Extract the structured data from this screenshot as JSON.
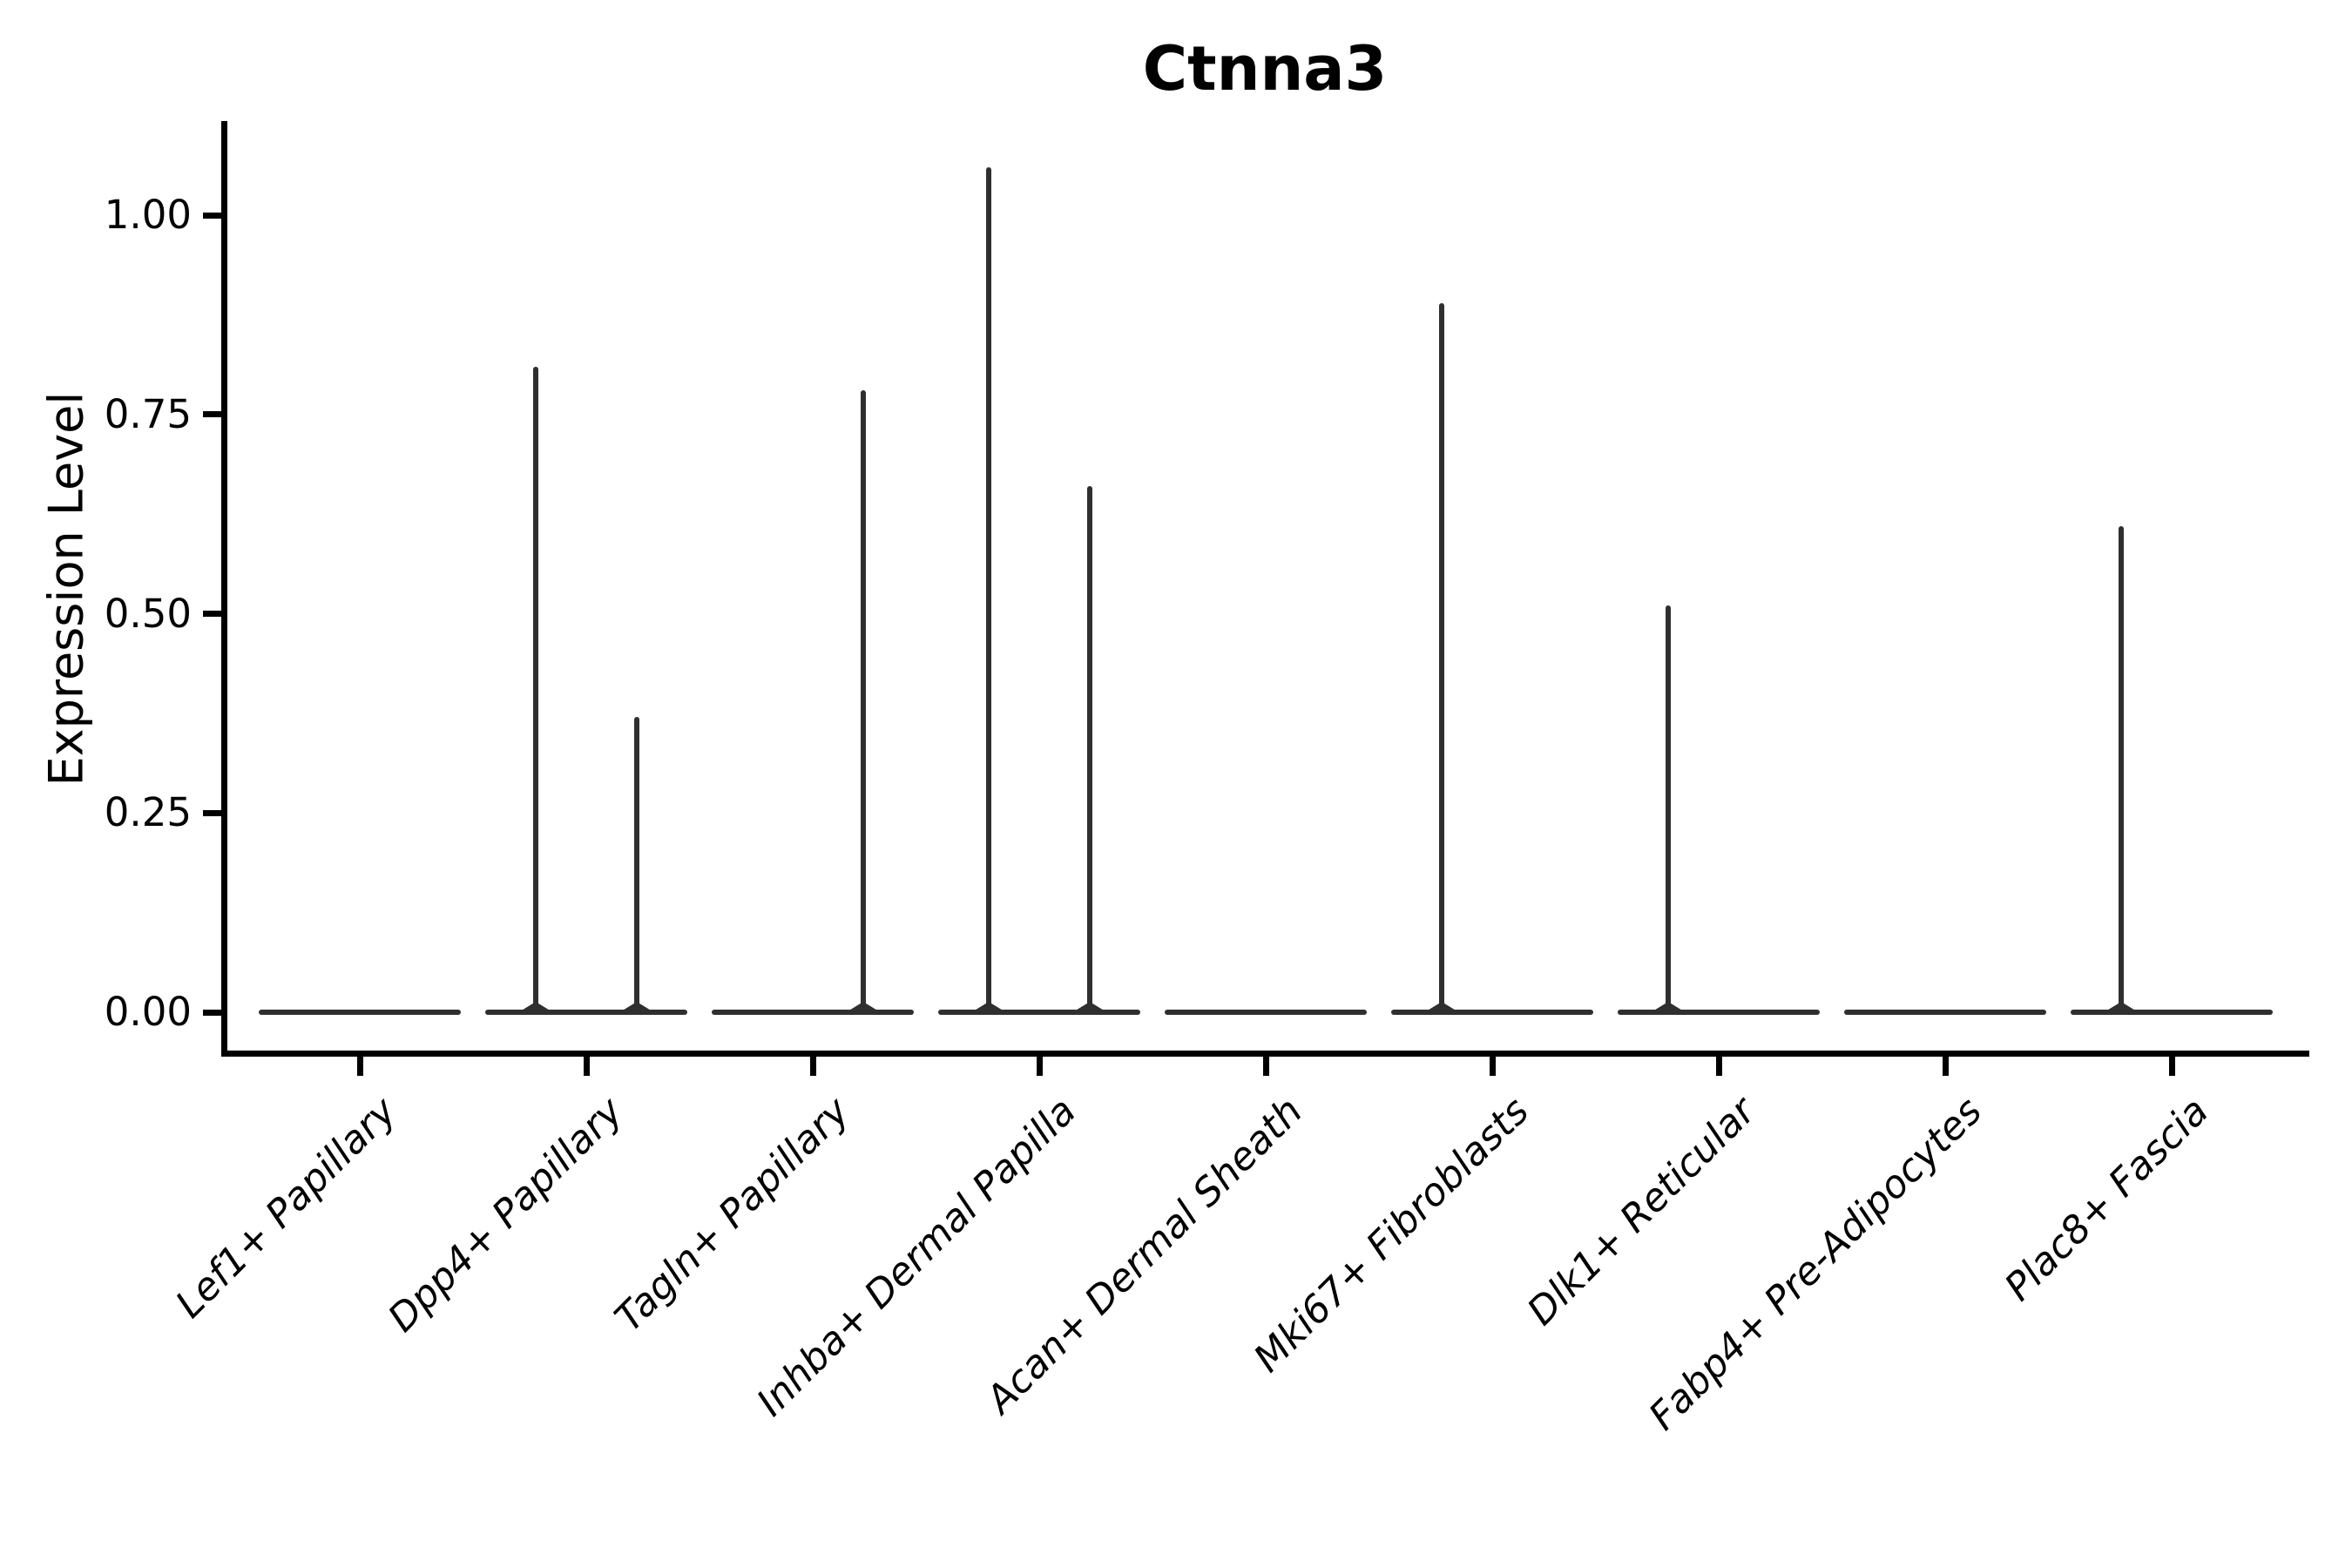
{
  "chart_data": {
    "type": "violin",
    "title": "Ctnna3",
    "xlabel": "",
    "ylabel": "Expression Level",
    "grid": false,
    "legend": null,
    "line_color": "#2f2f2f",
    "axis_color": "#000000",
    "ylim": [
      -0.05,
      1.12
    ],
    "ytick_values": [
      0.0,
      0.25,
      0.5,
      0.75,
      1.0
    ],
    "ytick_labels": [
      "0.00",
      "0.25",
      "0.50",
      "0.75",
      "1.00"
    ],
    "categories": [
      "Lef1+ Papillary",
      "Dpp4+ Papillary",
      "Tagln+ Papillary",
      "Inhba+ Dermal Papilla",
      "Acan+ Dermal Sheath",
      "Mki67+ Fibroblasts",
      "Dlk1+ Reticular",
      "Fabp4+ Pre-Adipocytes",
      "Plac8+ Fascia"
    ],
    "violins": [
      {
        "category": "Lef1+ Papillary",
        "peaks": []
      },
      {
        "category": "Dpp4+ Papillary",
        "peaks": [
          {
            "side": "left",
            "value": 0.81
          },
          {
            "side": "right",
            "value": 0.37
          }
        ]
      },
      {
        "category": "Tagln+ Papillary",
        "peaks": [
          {
            "side": "right",
            "value": 0.78
          }
        ]
      },
      {
        "category": "Inhba+ Dermal Papilla",
        "peaks": [
          {
            "side": "left",
            "value": 1.06
          },
          {
            "side": "right",
            "value": 0.66
          }
        ]
      },
      {
        "category": "Acan+ Dermal Sheath",
        "peaks": []
      },
      {
        "category": "Mki67+ Fibroblasts",
        "peaks": [
          {
            "side": "left",
            "value": 0.89
          }
        ]
      },
      {
        "category": "Dlk1+ Reticular",
        "peaks": [
          {
            "side": "left",
            "value": 0.51
          }
        ]
      },
      {
        "category": "Fabp4+ Pre-Adipocytes",
        "peaks": []
      },
      {
        "category": "Plac8+ Fascia",
        "peaks": [
          {
            "side": "left",
            "value": 0.61
          }
        ]
      }
    ]
  }
}
